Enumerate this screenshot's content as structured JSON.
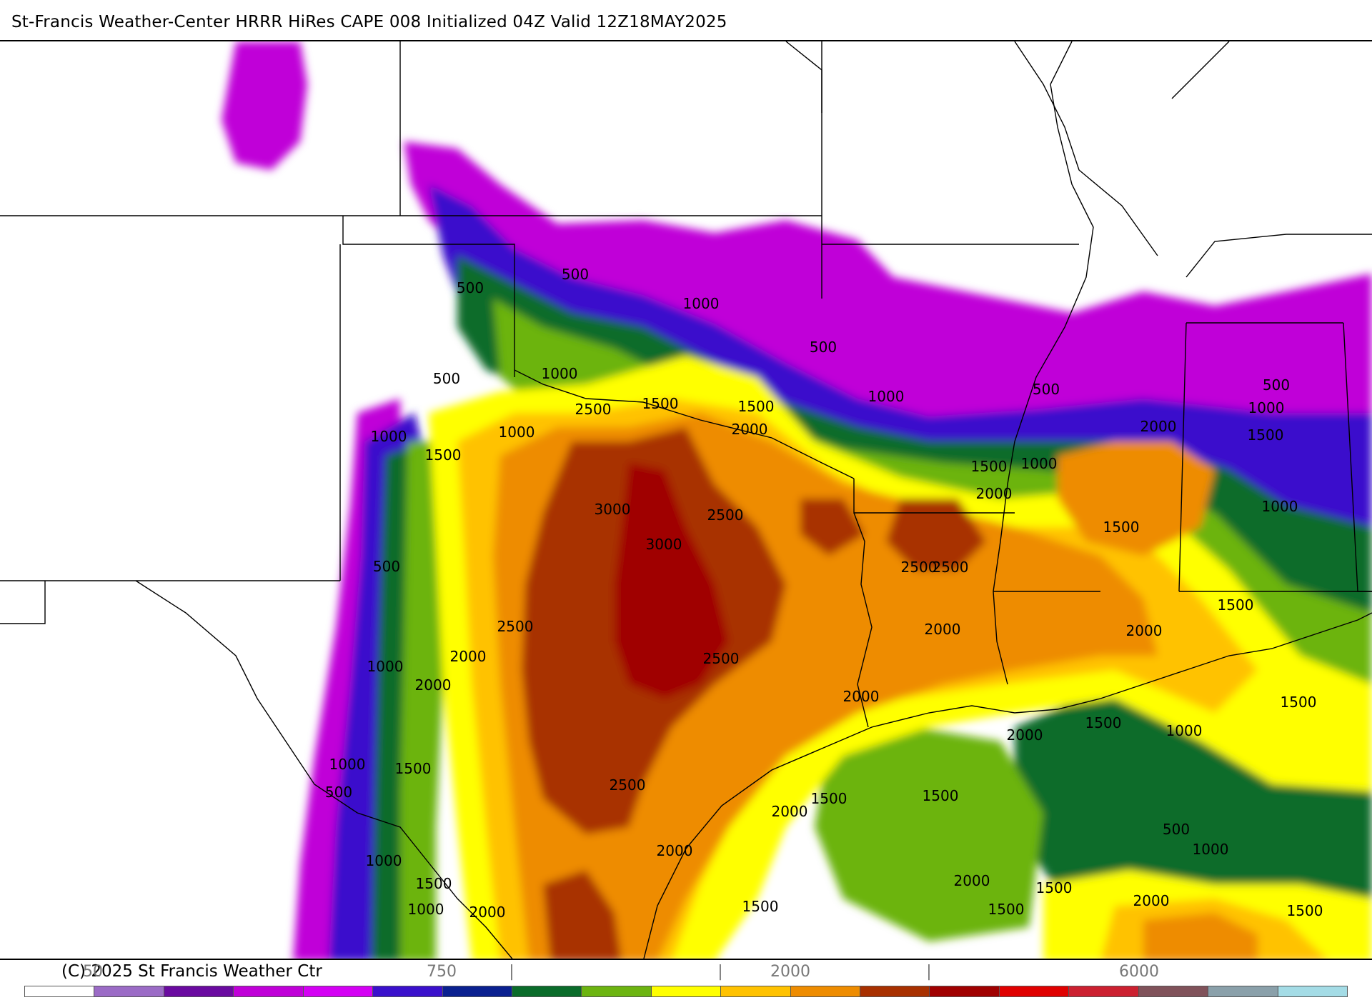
{
  "title": "St-Francis Weather-Center HRRR HiRes CAPE  008 Initialized  04Z Valid 12Z18MAY2025",
  "copyright": "(C) 2025 St Francis Weather Ctr",
  "legend": {
    "colors": [
      "#ffffff",
      "#9b6bc6",
      "#6a0aa0",
      "#c000d8",
      "#d400f4",
      "#3a10cc",
      "#0a2090",
      "#0a6c2a",
      "#6cb410",
      "#ffff00",
      "#ffc200",
      "#ee8c00",
      "#a83000",
      "#a00000",
      "#e00000",
      "#cc2030",
      "#80525a",
      "#8aa0aa",
      "#a4dce6"
    ],
    "tick_labels": [
      "50",
      "750",
      "2000",
      "6000"
    ],
    "tick_glyphs": [
      "|",
      "|",
      "|"
    ]
  },
  "contour_labels": [
    "500",
    "500",
    "500",
    "500",
    "500",
    "500",
    "500",
    "500",
    "500",
    "1000",
    "1000",
    "1000",
    "1000",
    "1000",
    "1000",
    "1000",
    "1000",
    "1000",
    "1000",
    "1000",
    "1000",
    "1000",
    "1000",
    "1500",
    "1500",
    "1500",
    "1500",
    "1500",
    "1500",
    "1500",
    "1500",
    "1500",
    "1500",
    "1500",
    "1500",
    "1500",
    "1500",
    "1500",
    "1500",
    "1500",
    "2000",
    "2000",
    "2000",
    "2000",
    "2000",
    "2000",
    "2000",
    "2000",
    "2000",
    "2000",
    "2000",
    "2000",
    "2000",
    "2000",
    "2500",
    "2500",
    "2500",
    "2500",
    "2500",
    "2500",
    "2500",
    "3000",
    "3000"
  ]
}
